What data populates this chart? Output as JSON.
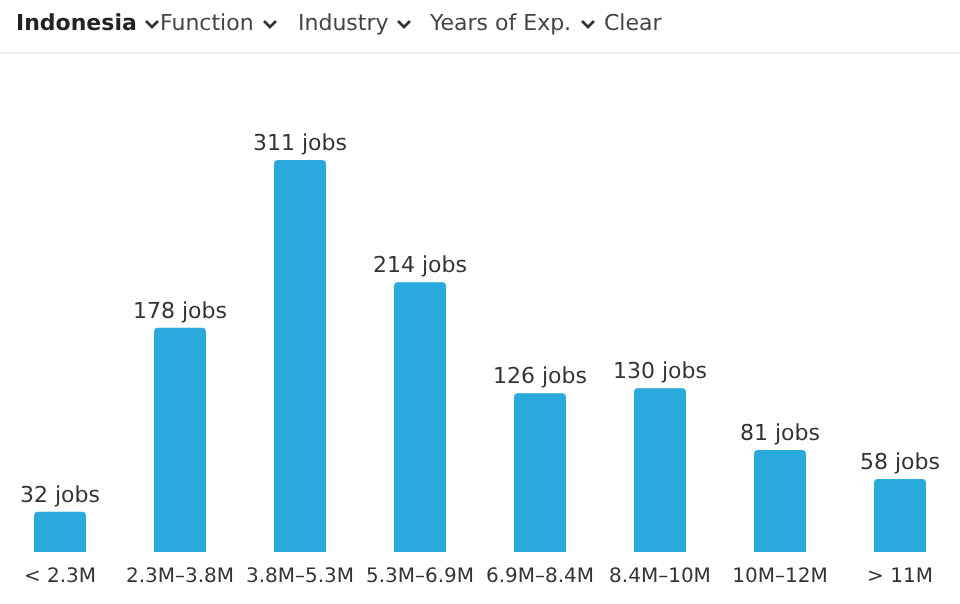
{
  "chart_data": {
    "type": "bar",
    "categories": [
      "< 2.3M",
      "2.3M–3.8M",
      "3.8M–5.3M",
      "5.3M–6.9M",
      "6.9M–8.4M",
      "8.4M–10M",
      "10M–12M",
      "> 11M"
    ],
    "values": [
      32,
      178,
      311,
      214,
      126,
      130,
      81,
      58
    ],
    "value_labels": [
      "32 jobs",
      "178 jobs",
      "311 jobs",
      "214 jobs",
      "126 jobs",
      "130 jobs",
      "81 jobs",
      "58 jobs"
    ],
    "color": "#29a9dc",
    "annotations": [
      "Indonesia",
      "Function",
      "Industry",
      "Years of Exp.",
      "Clear"
    ]
  }
}
